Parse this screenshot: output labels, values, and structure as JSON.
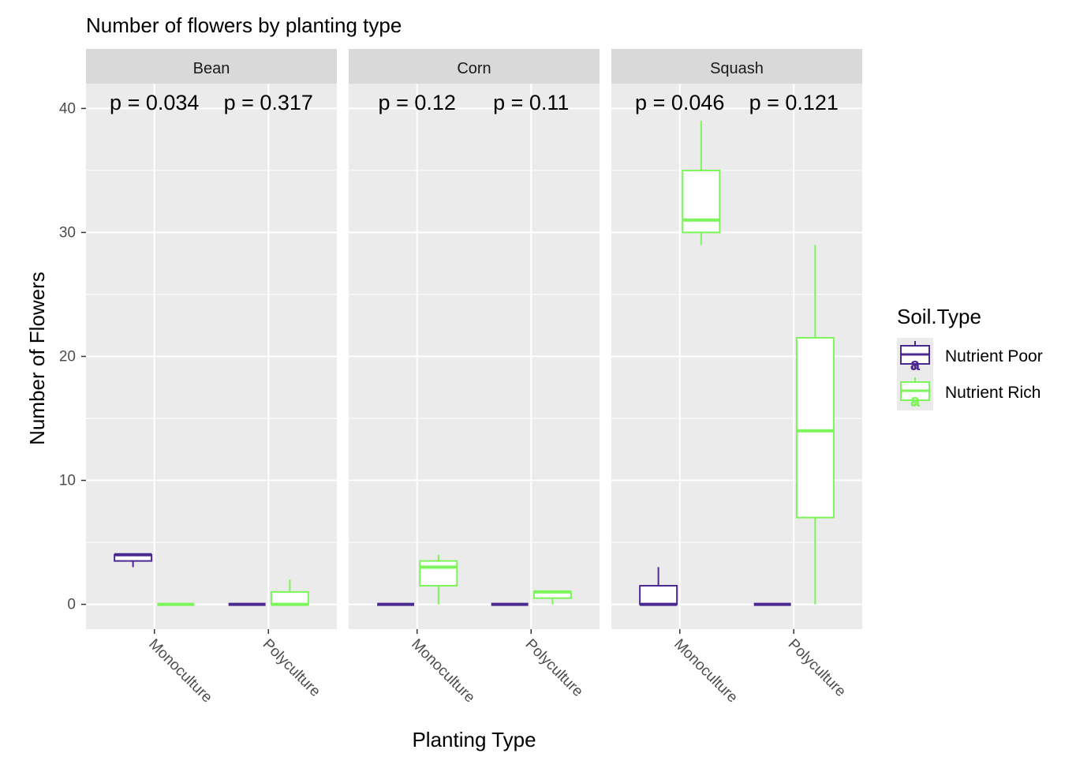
{
  "chart_data": {
    "type": "boxplot",
    "title": "Number of flowers by planting type",
    "xlabel": "Planting Type",
    "ylabel": "Number of Flowers",
    "ylim": [
      -2,
      42
    ],
    "yticks": [
      0,
      10,
      20,
      30,
      40
    ],
    "categories": [
      "Monoculture",
      "Polyculture"
    ],
    "grid": true,
    "legend": {
      "title": "Soil.Type",
      "position": "right",
      "items": [
        {
          "name": "Nutrient Poor",
          "color": "#4b2991",
          "key_glyph": "a"
        },
        {
          "name": "Nutrient Rich",
          "color": "#7cf55a",
          "key_glyph": "a"
        }
      ]
    },
    "facets": [
      {
        "name": "Bean",
        "pvalues": [
          "p = 0.034",
          "p = 0.317"
        ],
        "boxes": [
          {
            "category": "Monoculture",
            "soil": "Nutrient Poor",
            "lower_whisker": 3,
            "q1": 3.5,
            "median": 4,
            "q3": 4,
            "upper_whisker": 4
          },
          {
            "category": "Monoculture",
            "soil": "Nutrient Rich",
            "lower_whisker": 0,
            "q1": 0,
            "median": 0,
            "q3": 0,
            "upper_whisker": 0
          },
          {
            "category": "Polyculture",
            "soil": "Nutrient Poor",
            "lower_whisker": 0,
            "q1": 0,
            "median": 0,
            "q3": 0,
            "upper_whisker": 0
          },
          {
            "category": "Polyculture",
            "soil": "Nutrient Rich",
            "lower_whisker": 0,
            "q1": 0,
            "median": 0,
            "q3": 1,
            "upper_whisker": 2
          }
        ]
      },
      {
        "name": "Corn",
        "pvalues": [
          "p = 0.12",
          "p = 0.11"
        ],
        "boxes": [
          {
            "category": "Monoculture",
            "soil": "Nutrient Poor",
            "lower_whisker": 0,
            "q1": 0,
            "median": 0,
            "q3": 0,
            "upper_whisker": 0
          },
          {
            "category": "Monoculture",
            "soil": "Nutrient Rich",
            "lower_whisker": 0,
            "q1": 1.5,
            "median": 3,
            "q3": 3.5,
            "upper_whisker": 4
          },
          {
            "category": "Polyculture",
            "soil": "Nutrient Poor",
            "lower_whisker": 0,
            "q1": 0,
            "median": 0,
            "q3": 0,
            "upper_whisker": 0
          },
          {
            "category": "Polyculture",
            "soil": "Nutrient Rich",
            "lower_whisker": 0,
            "q1": 0.5,
            "median": 1,
            "q3": 1,
            "upper_whisker": 1
          }
        ]
      },
      {
        "name": "Squash",
        "pvalues": [
          "p = 0.046",
          "p = 0.121"
        ],
        "boxes": [
          {
            "category": "Monoculture",
            "soil": "Nutrient Poor",
            "lower_whisker": 0,
            "q1": 0,
            "median": 0,
            "q3": 1.5,
            "upper_whisker": 3
          },
          {
            "category": "Monoculture",
            "soil": "Nutrient Rich",
            "lower_whisker": 29,
            "q1": 30,
            "median": 31,
            "q3": 35,
            "upper_whisker": 39
          },
          {
            "category": "Polyculture",
            "soil": "Nutrient Poor",
            "lower_whisker": 0,
            "q1": 0,
            "median": 0,
            "q3": 0,
            "upper_whisker": 0
          },
          {
            "category": "Polyculture",
            "soil": "Nutrient Rich",
            "lower_whisker": 0,
            "q1": 7,
            "median": 14,
            "q3": 21.5,
            "upper_whisker": 29
          }
        ]
      }
    ]
  }
}
